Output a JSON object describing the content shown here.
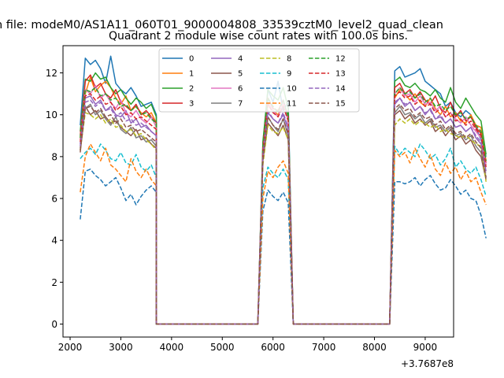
{
  "chart_data": {
    "type": "line",
    "suptitle": "n file: modeM0/AS1A11_060T01_9000004808_33539cztM0_level2_quad_clean",
    "title": "Quadrant 2 module wise count rates with 100.0s bins.",
    "xlabel": "",
    "ylabel": "",
    "x_offset_label": "+3.7687e8",
    "xlim": [
      1860,
      9560
    ],
    "ylim": [
      -0.62,
      13.3
    ],
    "x_ticks": [
      2000,
      3000,
      4000,
      5000,
      6000,
      7000,
      8000,
      9000
    ],
    "x_tick_labels": [
      "2000",
      "3000",
      "4000",
      "5000",
      "6000",
      "7000",
      "8000",
      "9000"
    ],
    "y_ticks": [
      0,
      2,
      4,
      6,
      8,
      10,
      12
    ],
    "y_tick_labels": [
      "0",
      "2",
      "4",
      "6",
      "8",
      "10",
      "12"
    ],
    "grid": false,
    "legend_position": "top-center",
    "legend_columns": 4,
    "series": [
      {
        "name": "0",
        "color": "#1f77b4",
        "dash": "solid",
        "seg1": [
          9.5,
          12.7,
          12.4,
          12.6,
          12.2,
          11.5,
          12.8,
          11.5,
          11.2,
          11.0,
          11.3,
          10.9,
          10.4,
          10.5,
          10.6,
          10.0
        ],
        "seg2": [
          8.5,
          11.2,
          10.6,
          11.6,
          10.2,
          10.6
        ],
        "seg3": [
          12.1,
          12.3,
          11.8,
          11.9,
          12.0,
          12.2,
          11.6,
          11.4,
          11.2,
          11.0,
          10.4,
          10.6,
          10.1,
          9.9,
          10.2,
          10.0,
          9.4,
          8.8,
          8.0
        ]
      },
      {
        "name": "1",
        "color": "#ff7f0e",
        "dash": "solid",
        "seg1": [
          8.9,
          11.0,
          11.8,
          11.1,
          11.4,
          11.6,
          11.3,
          10.8,
          10.5,
          10.9,
          10.2,
          10.4,
          10.1,
          9.9,
          10.1,
          9.6
        ],
        "seg2": [
          8.2,
          10.5,
          10.2,
          10.0,
          10.5,
          9.8
        ],
        "seg3": [
          10.8,
          11.2,
          11.0,
          10.7,
          11.0,
          10.6,
          10.4,
          10.8,
          10.3,
          10.0,
          10.4,
          9.9,
          10.1,
          9.7,
          9.6,
          10.0,
          9.5,
          9.4,
          7.8
        ]
      },
      {
        "name": "2",
        "color": "#2ca02c",
        "dash": "solid",
        "seg1": [
          9.2,
          11.7,
          11.6,
          12.0,
          11.7,
          11.8,
          11.3,
          11.0,
          11.2,
          10.8,
          10.5,
          10.8,
          10.6,
          10.3,
          10.5,
          9.9
        ],
        "seg2": [
          8.7,
          11.2,
          10.9,
          10.7,
          11.3,
          10.3
        ],
        "seg3": [
          11.6,
          11.8,
          11.4,
          11.3,
          11.5,
          11.2,
          11.1,
          10.9,
          11.2,
          10.8,
          10.6,
          11.3,
          10.6,
          10.3,
          10.8,
          10.4,
          10.0,
          9.7,
          8.1
        ]
      },
      {
        "name": "3",
        "color": "#d62728",
        "dash": "solid",
        "seg1": [
          9.0,
          11.6,
          11.9,
          11.3,
          11.5,
          11.0,
          10.8,
          11.2,
          10.6,
          10.4,
          10.2,
          10.5,
          10.0,
          10.2,
          9.9,
          9.6
        ],
        "seg2": [
          8.4,
          10.8,
          10.3,
          10.2,
          10.7,
          9.9
        ],
        "seg3": [
          11.3,
          11.5,
          11.0,
          11.2,
          10.8,
          11.1,
          10.7,
          10.5,
          10.9,
          10.3,
          10.1,
          10.6,
          9.9,
          10.2,
          9.7,
          9.9,
          9.4,
          9.1,
          7.7
        ]
      },
      {
        "name": "4",
        "color": "#9467bd",
        "dash": "solid",
        "seg1": [
          8.6,
          10.8,
          10.9,
          10.5,
          10.7,
          10.2,
          10.4,
          10.0,
          9.9,
          10.2,
          9.6,
          9.8,
          9.4,
          9.5,
          9.2,
          9.0
        ],
        "seg2": [
          8.0,
          10.1,
          9.8,
          9.6,
          10.0,
          9.3
        ],
        "seg3": [
          10.5,
          10.8,
          10.4,
          10.6,
          10.2,
          10.4,
          10.0,
          10.3,
          9.8,
          9.9,
          9.6,
          9.8,
          9.4,
          9.5,
          9.2,
          9.4,
          8.9,
          8.6,
          7.3
        ]
      },
      {
        "name": "5",
        "color": "#8c564b",
        "dash": "solid",
        "seg1": [
          8.2,
          10.4,
          10.0,
          10.2,
          9.8,
          9.9,
          9.6,
          9.7,
          9.4,
          9.2,
          9.0,
          9.3,
          8.8,
          8.9,
          8.6,
          8.4
        ],
        "seg2": [
          7.8,
          9.6,
          9.3,
          9.0,
          9.5,
          8.8
        ],
        "seg3": [
          10.0,
          10.2,
          9.8,
          10.0,
          9.6,
          9.8,
          9.5,
          9.7,
          9.2,
          9.4,
          9.0,
          9.3,
          8.8,
          9.0,
          8.6,
          8.8,
          8.3,
          8.0,
          6.9
        ]
      },
      {
        "name": "6",
        "color": "#e377c2",
        "dash": "solid",
        "seg1": [
          8.8,
          11.2,
          11.0,
          11.4,
          10.8,
          11.0,
          10.6,
          10.3,
          10.7,
          10.1,
          9.9,
          10.2,
          9.8,
          9.6,
          9.9,
          9.4
        ],
        "seg2": [
          8.3,
          10.6,
          10.2,
          9.9,
          10.6,
          9.7
        ],
        "seg3": [
          11.0,
          11.3,
          10.9,
          11.0,
          10.6,
          10.9,
          10.5,
          10.6,
          10.2,
          10.4,
          9.9,
          10.1,
          9.8,
          9.6,
          9.9,
          9.5,
          9.2,
          8.9,
          7.6
        ]
      },
      {
        "name": "7",
        "color": "#7f7f7f",
        "dash": "solid",
        "seg1": [
          8.4,
          10.3,
          10.5,
          10.0,
          10.2,
          9.8,
          9.5,
          9.9,
          9.3,
          9.1,
          9.4,
          8.9,
          9.0,
          8.7,
          8.8,
          8.5
        ],
        "seg2": [
          7.9,
          9.9,
          9.5,
          9.2,
          9.8,
          9.0
        ],
        "seg3": [
          10.1,
          10.4,
          10.0,
          10.1,
          9.8,
          10.0,
          9.6,
          9.8,
          9.4,
          9.5,
          9.2,
          9.4,
          9.0,
          9.1,
          8.8,
          9.0,
          8.5,
          8.2,
          7.0
        ]
      },
      {
        "name": "8",
        "color": "#bcbd22",
        "dash": "dashed",
        "seg1": [
          8.3,
          10.1,
          10.0,
          9.8,
          10.0,
          9.6,
          9.8,
          9.4,
          9.5,
          9.2,
          9.3,
          9.0,
          9.1,
          8.8,
          8.6,
          8.3
        ],
        "seg2": [
          7.6,
          9.5,
          9.2,
          9.1,
          9.4,
          8.8
        ],
        "seg3": [
          9.5,
          9.8,
          9.6,
          9.8,
          9.5,
          9.7,
          9.6,
          9.4,
          9.5,
          9.2,
          9.3,
          9.1,
          9.0,
          8.9,
          9.0,
          8.8,
          8.6,
          8.5,
          6.8
        ]
      },
      {
        "name": "9",
        "color": "#17becf",
        "dash": "dashed",
        "seg1": [
          7.9,
          8.2,
          8.4,
          8.1,
          8.6,
          8.3,
          7.9,
          7.8,
          8.2,
          7.7,
          7.6,
          8.1,
          7.5,
          7.3,
          7.6,
          7.0
        ],
        "seg2": [
          6.5,
          7.5,
          7.2,
          7.0,
          7.4,
          6.9
        ],
        "seg3": [
          8.5,
          8.1,
          8.4,
          8.2,
          8.0,
          8.6,
          8.3,
          7.9,
          8.1,
          7.6,
          7.9,
          8.4,
          7.5,
          7.8,
          7.4,
          7.2,
          7.5,
          6.9,
          6.1
        ]
      },
      {
        "name": "10",
        "color": "#1f77b4",
        "dash": "dashed",
        "seg1": [
          5.0,
          7.3,
          7.4,
          7.1,
          6.9,
          6.6,
          6.8,
          7.0,
          6.5,
          5.9,
          6.2,
          5.7,
          6.1,
          6.4,
          6.6,
          6.3
        ],
        "seg2": [
          5.4,
          6.4,
          6.1,
          5.9,
          6.3,
          5.8
        ],
        "seg3": [
          6.8,
          6.8,
          6.7,
          6.8,
          7.0,
          6.6,
          6.9,
          7.1,
          6.7,
          6.4,
          6.5,
          6.9,
          6.6,
          6.2,
          6.4,
          6.0,
          5.9,
          5.2,
          4.1
        ]
      },
      {
        "name": "11",
        "color": "#ff7f0e",
        "dash": "dashed",
        "seg1": [
          6.3,
          8.0,
          8.6,
          8.2,
          7.8,
          8.4,
          7.6,
          7.4,
          7.1,
          6.8,
          7.9,
          7.3,
          7.0,
          7.4,
          6.9,
          6.6
        ],
        "seg2": [
          6.0,
          7.3,
          7.0,
          7.5,
          7.8,
          7.2
        ],
        "seg3": [
          8.3,
          8.0,
          8.2,
          7.7,
          8.4,
          7.9,
          7.5,
          8.1,
          7.4,
          7.1,
          7.7,
          7.2,
          7.5,
          6.9,
          7.3,
          6.8,
          7.0,
          6.3,
          5.7
        ]
      },
      {
        "name": "12",
        "color": "#2ca02c",
        "dash": "dashed",
        "seg1": [
          8.9,
          11.2,
          11.1,
          11.3,
          10.9,
          11.0,
          10.7,
          10.8,
          10.4,
          10.5,
          10.2,
          10.4,
          10.0,
          10.1,
          9.8,
          9.6
        ],
        "seg2": [
          8.4,
          10.8,
          10.4,
          10.1,
          10.7,
          9.9
        ],
        "seg3": [
          11.0,
          11.3,
          11.0,
          11.1,
          10.8,
          11.0,
          10.6,
          10.8,
          10.4,
          10.5,
          10.2,
          10.4,
          10.0,
          10.1,
          9.8,
          9.9,
          9.5,
          9.2,
          7.8
        ]
      },
      {
        "name": "13",
        "color": "#d62728",
        "dash": "dashed",
        "seg1": [
          8.7,
          10.9,
          11.0,
          10.7,
          10.9,
          10.5,
          10.6,
          10.2,
          10.4,
          10.0,
          10.1,
          9.8,
          9.9,
          9.7,
          9.5,
          9.3
        ],
        "seg2": [
          8.2,
          10.5,
          10.1,
          9.9,
          10.4,
          9.7
        ],
        "seg3": [
          10.9,
          11.1,
          10.8,
          10.9,
          10.5,
          10.7,
          10.4,
          10.5,
          10.1,
          10.3,
          9.9,
          10.1,
          9.7,
          9.8,
          9.5,
          9.7,
          9.3,
          9.0,
          7.5
        ]
      },
      {
        "name": "14",
        "color": "#9467bd",
        "dash": "dashed",
        "seg1": [
          8.5,
          10.6,
          10.7,
          10.4,
          10.6,
          10.2,
          10.3,
          9.9,
          10.1,
          9.7,
          9.8,
          9.5,
          9.6,
          9.4,
          9.2,
          9.0
        ],
        "seg2": [
          8.0,
          10.2,
          9.8,
          9.6,
          10.1,
          9.4
        ],
        "seg3": [
          10.6,
          10.8,
          10.5,
          10.6,
          10.2,
          10.4,
          10.1,
          10.2,
          9.8,
          10.0,
          9.6,
          9.8,
          9.4,
          9.5,
          9.2,
          9.4,
          9.0,
          8.7,
          7.2
        ]
      },
      {
        "name": "15",
        "color": "#8c564b",
        "dash": "dashed",
        "seg1": [
          8.3,
          10.3,
          10.4,
          10.1,
          10.3,
          9.9,
          10.0,
          9.6,
          9.8,
          9.4,
          9.5,
          9.2,
          9.3,
          9.1,
          8.9,
          8.7
        ],
        "seg2": [
          7.8,
          9.9,
          9.5,
          9.3,
          9.8,
          9.1
        ],
        "seg3": [
          10.3,
          10.5,
          10.2,
          10.3,
          9.9,
          10.1,
          9.8,
          9.9,
          9.5,
          9.7,
          9.3,
          9.5,
          9.1,
          9.2,
          8.9,
          9.1,
          8.7,
          8.4,
          7.0
        ]
      }
    ]
  }
}
